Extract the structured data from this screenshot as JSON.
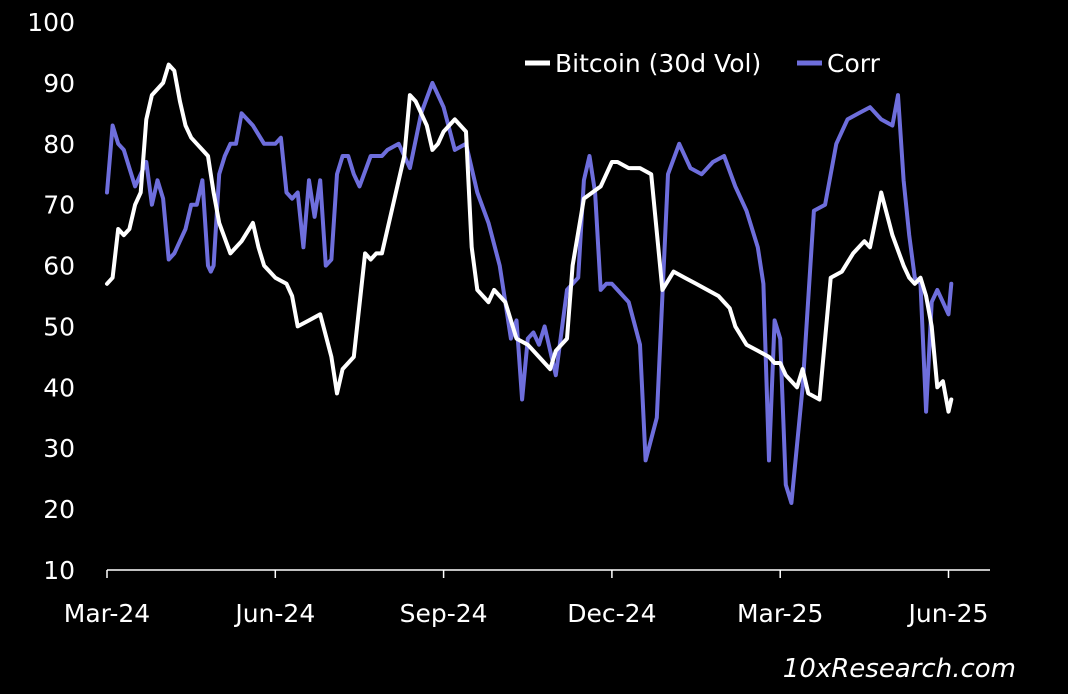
{
  "chart_data": {
    "type": "line",
    "title": "",
    "xlabel": "",
    "ylabel": "",
    "ylim": [
      10,
      100
    ],
    "y_ticks": [
      "100",
      "90",
      "80",
      "70",
      "60",
      "50",
      "40",
      "30",
      "20",
      "10"
    ],
    "x_ticks": [
      "Mar-24",
      "Jun-24",
      "Sep-24",
      "Dec-24",
      "Mar-25",
      "Jun-25"
    ],
    "x_range_months": [
      0,
      15.1
    ],
    "legend": [
      "Bitcoin (30d Vol)",
      "Corr"
    ],
    "legend_position": "top-right",
    "grid": false,
    "series": [
      {
        "name": "Bitcoin (30d Vol)",
        "color": "#ffffff",
        "x": [
          0.0,
          0.1,
          0.2,
          0.3,
          0.4,
          0.5,
          0.6,
          0.7,
          0.8,
          0.9,
          1.0,
          1.1,
          1.2,
          1.3,
          1.4,
          1.5,
          1.6,
          1.7,
          1.8,
          1.9,
          2.0,
          2.2,
          2.4,
          2.6,
          2.7,
          2.8,
          2.9,
          3.0,
          3.2,
          3.3,
          3.4,
          3.6,
          3.8,
          4.0,
          4.1,
          4.2,
          4.3,
          4.4,
          4.6,
          4.7,
          4.8,
          4.9,
          5.1,
          5.3,
          5.4,
          5.5,
          5.6,
          5.7,
          5.8,
          5.9,
          6.0,
          6.1,
          6.2,
          6.4,
          6.5,
          6.6,
          6.7,
          6.8,
          6.9,
          7.0,
          7.1,
          7.3,
          7.5,
          7.7,
          7.8,
          7.9,
          8.0,
          8.2,
          8.3,
          8.5,
          8.8,
          9.0,
          9.1,
          9.3,
          9.5,
          9.7,
          9.9,
          10.1,
          10.3,
          10.5,
          10.7,
          10.9,
          11.0,
          11.1,
          11.2,
          11.4,
          11.6,
          11.8,
          11.9,
          12.0,
          12.1,
          12.3,
          12.4,
          12.5,
          12.7,
          12.9,
          13.1,
          13.3,
          13.5,
          13.6,
          13.8,
          14.0,
          14.2,
          14.3,
          14.4,
          14.5,
          14.6,
          14.7,
          14.8,
          14.9,
          15.0,
          15.05
        ],
        "values": [
          57,
          58,
          66,
          65,
          66,
          70,
          72,
          84,
          88,
          89,
          90,
          93,
          92,
          87,
          83,
          81,
          80,
          79,
          78,
          72,
          67,
          62,
          64,
          67,
          63,
          60,
          59,
          58,
          57,
          55,
          50,
          51,
          52,
          45,
          39,
          43,
          44,
          45,
          62,
          61,
          62,
          62,
          70,
          78,
          88,
          87,
          85,
          83,
          79,
          80,
          82,
          83,
          84,
          82,
          63,
          56,
          55,
          54,
          56,
          55,
          54,
          48,
          47,
          45,
          44,
          43,
          46,
          48,
          60,
          71,
          73,
          77,
          77,
          76,
          76,
          75,
          56,
          59,
          58,
          57,
          56,
          55,
          54,
          53,
          50,
          47,
          46,
          45,
          44,
          44,
          42,
          40,
          43,
          39,
          38,
          58,
          59,
          62,
          64,
          63,
          72,
          65,
          60,
          58,
          57,
          58,
          55,
          50,
          40,
          41,
          36,
          38
        ]
      },
      {
        "name": "Corr",
        "color": "#6e6edc",
        "x": [
          0.0,
          0.1,
          0.2,
          0.3,
          0.4,
          0.5,
          0.6,
          0.7,
          0.8,
          0.9,
          1.0,
          1.1,
          1.2,
          1.3,
          1.4,
          1.5,
          1.6,
          1.7,
          1.8,
          1.85,
          1.9,
          2.0,
          2.1,
          2.2,
          2.3,
          2.4,
          2.6,
          2.8,
          3.0,
          3.1,
          3.2,
          3.3,
          3.4,
          3.5,
          3.6,
          3.7,
          3.8,
          3.9,
          4.0,
          4.1,
          4.2,
          4.3,
          4.4,
          4.5,
          4.7,
          4.9,
          5.0,
          5.2,
          5.4,
          5.6,
          5.8,
          6.0,
          6.2,
          6.4,
          6.6,
          6.8,
          7.0,
          7.2,
          7.3,
          7.4,
          7.5,
          7.6,
          7.7,
          7.8,
          7.9,
          8.0,
          8.2,
          8.4,
          8.5,
          8.6,
          8.7,
          8.8,
          8.9,
          9.0,
          9.1,
          9.3,
          9.5,
          9.6,
          9.8,
          10.0,
          10.2,
          10.4,
          10.6,
          10.8,
          11.0,
          11.2,
          11.4,
          11.6,
          11.7,
          11.8,
          11.9,
          12.0,
          12.1,
          12.2,
          12.4,
          12.6,
          12.8,
          13.0,
          13.2,
          13.4,
          13.6,
          13.8,
          14.0,
          14.1,
          14.2,
          14.3,
          14.4,
          14.5,
          14.6,
          14.7,
          14.8,
          14.9,
          15.0,
          15.05
        ],
        "values": [
          72,
          83,
          80,
          79,
          76,
          73,
          75,
          77,
          70,
          74,
          71,
          61,
          62,
          64,
          66,
          70,
          70,
          74,
          60,
          59,
          60,
          75,
          78,
          80,
          80,
          85,
          83,
          80,
          80,
          81,
          72,
          71,
          72,
          63,
          74,
          68,
          74,
          60,
          61,
          75,
          78,
          78,
          75,
          73,
          78,
          78,
          79,
          80,
          76,
          85,
          90,
          86,
          79,
          80,
          72,
          67,
          60,
          48,
          51,
          38,
          48,
          49,
          47,
          50,
          46,
          42,
          56,
          58,
          74,
          78,
          72,
          56,
          57,
          57,
          56,
          54,
          47,
          28,
          35,
          75,
          80,
          76,
          75,
          77,
          78,
          73,
          69,
          63,
          57,
          28,
          51,
          48,
          24,
          21,
          40,
          69,
          70,
          80,
          84,
          85,
          86,
          84,
          83,
          88,
          74,
          65,
          58,
          57,
          36,
          54,
          56,
          54,
          52,
          57
        ]
      }
    ]
  },
  "watermark": "10xResearch.com"
}
